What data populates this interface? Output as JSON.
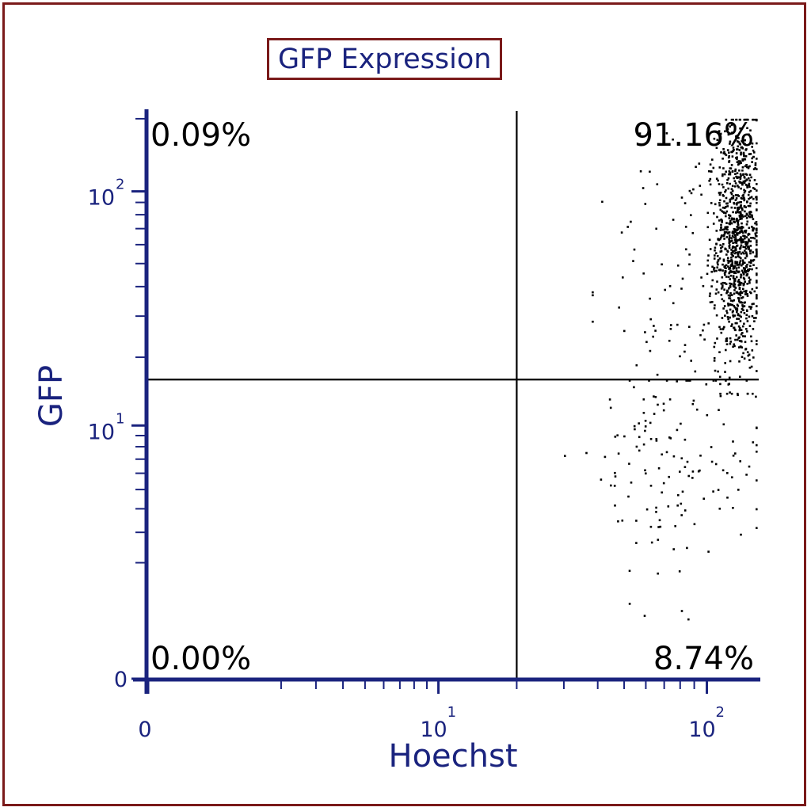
{
  "chart_data": {
    "type": "scatter",
    "title": "GFP Expression",
    "xlabel": "Hoechst",
    "ylabel": "GFP",
    "x_scale": "log",
    "y_scale": "log",
    "xlim": [
      0,
      150
    ],
    "ylim": [
      0,
      200
    ],
    "x_ticks": [
      {
        "value": 0,
        "label": "0"
      },
      {
        "value": 10,
        "base": "10",
        "exp": "1"
      },
      {
        "value": 100,
        "base": "10",
        "exp": "2"
      }
    ],
    "y_ticks": [
      {
        "value": 0,
        "label": "0"
      },
      {
        "value": 10,
        "base": "10",
        "exp": "1"
      },
      {
        "value": 100,
        "base": "10",
        "exp": "2"
      }
    ],
    "gate": {
      "x": 20,
      "y": 16
    },
    "quadrants": {
      "upper_left": "0.09%",
      "upper_right": "91.16%",
      "lower_left": "0.00%",
      "lower_right": "8.74%"
    },
    "populations": [
      {
        "name": "",
        "n": 1000,
        "x_center": 128,
        "x_spread": 0.04,
        "y_center": 62,
        "y_spread": 0.26,
        "x_min": 100,
        "x_max": 150,
        "y_min": 14,
        "y_max": 200
      },
      {
        "name": "",
        "n": 120,
        "x_center": 90,
        "x_spread": 0.17,
        "y_center": 42,
        "y_spread": 0.3,
        "x_min": 38,
        "x_max": 150,
        "y_min": 16,
        "y_max": 190
      },
      {
        "name": "",
        "n": 140,
        "x_center": 80,
        "x_spread": 0.16,
        "y_center": 4,
        "y_spread": 0.55,
        "x_min": 30,
        "x_max": 150,
        "y_min": 0,
        "y_max": 16
      }
    ],
    "point_color": "#000000",
    "axis_color": "#1a237e",
    "grid": false
  },
  "colors": {
    "frame": "#7a1a1a",
    "axis": "#1a237e",
    "text": "#000000"
  }
}
